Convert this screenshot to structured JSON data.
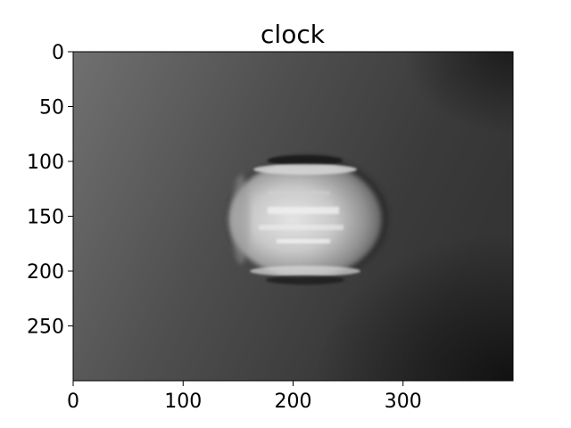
{
  "figure": {
    "title": "clock",
    "image": {
      "description_icon": "grayscale-blurred-clock-photo",
      "x_extent": [
        0,
        400
      ],
      "y_extent": [
        0,
        300
      ],
      "y_axis_inverted": true
    },
    "x_axis": {
      "ticks": [
        0,
        100,
        200,
        300
      ],
      "tick_labels": [
        "0",
        "100",
        "200",
        "300"
      ]
    },
    "y_axis": {
      "ticks": [
        0,
        50,
        100,
        150,
        200,
        250
      ],
      "tick_labels": [
        "0",
        "50",
        "100",
        "150",
        "200",
        "250"
      ]
    },
    "colors": {
      "background_dark": "#3a3a3a",
      "background_left": "#6e6e6e",
      "object_highlight": "#e8e8e8",
      "axis": "#000000"
    }
  }
}
